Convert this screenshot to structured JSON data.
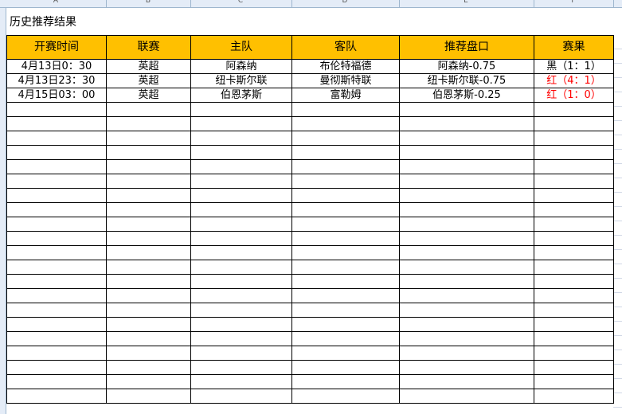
{
  "columns": [
    "A",
    "B",
    "C",
    "D",
    "E",
    "F"
  ],
  "title": "历史推荐结果",
  "headers": [
    "开赛时间",
    "联赛",
    "主队",
    "客队",
    "推荐盘口",
    "赛果"
  ],
  "rows": [
    [
      "4月13日0：30",
      "英超",
      "阿森纳",
      "布伦特福德",
      "阿森纳-0.75",
      "黑（1：1）"
    ],
    [
      "4月13日23：30",
      "英超",
      "纽卡斯尔联",
      "曼彻斯特联",
      "纽卡斯尔联-0.75",
      "红（4：1）"
    ],
    [
      "4月15日03：00",
      "英超",
      "伯恩茅斯",
      "富勒姆",
      "伯恩茅斯-0.25",
      "红（1：0）"
    ]
  ],
  "result_colors": {
    "black": "#000000",
    "red": "#ff0000"
  },
  "header_color": "#ffc000",
  "empty_rows": 21
}
